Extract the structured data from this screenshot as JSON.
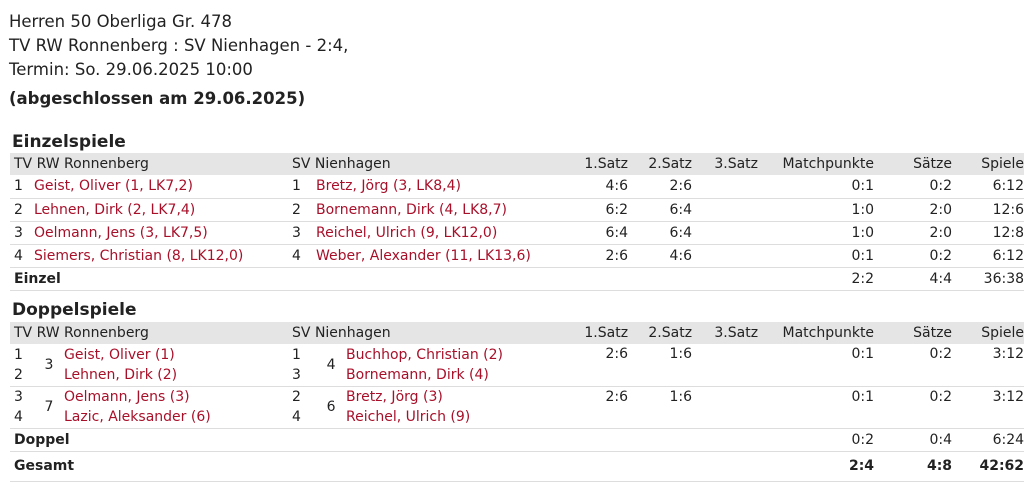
{
  "header": {
    "league": "Herren 50 Oberliga Gr. 478",
    "match": "TV RW Ronnenberg : SV Nienhagen - 2:4,",
    "termin": "Termin: So. 29.06.2025 10:00",
    "status": "(abgeschlossen am 29.06.2025)"
  },
  "columns": {
    "home": "TV RW Ronnenberg",
    "away": "SV Nienhagen",
    "s1": "1.Satz",
    "s2": "2.Satz",
    "s3": "3.Satz",
    "mp": "Matchpunkte",
    "saetze": "Sätze",
    "spiele": "Spiele"
  },
  "einzel": {
    "title": "Einzelspiele",
    "rows": [
      {
        "hn": "1",
        "home": "Geist, Oliver (1, LK7,2)",
        "an": "1",
        "away": "Bretz, Jörg (3, LK8,4)",
        "s1": "4:6",
        "s2": "2:6",
        "s3": "",
        "mp": "0:1",
        "saetze": "0:2",
        "spiele": "6:12"
      },
      {
        "hn": "2",
        "home": "Lehnen, Dirk (2, LK7,4)",
        "an": "2",
        "away": "Bornemann, Dirk (4, LK8,7)",
        "s1": "6:2",
        "s2": "6:4",
        "s3": "",
        "mp": "1:0",
        "saetze": "2:0",
        "spiele": "12:6"
      },
      {
        "hn": "3",
        "home": "Oelmann, Jens (3, LK7,5)",
        "an": "3",
        "away": "Reichel, Ulrich (9, LK12,0)",
        "s1": "6:4",
        "s2": "6:4",
        "s3": "",
        "mp": "1:0",
        "saetze": "2:0",
        "spiele": "12:8"
      },
      {
        "hn": "4",
        "home": "Siemers, Christian (8, LK12,0)",
        "an": "4",
        "away": "Weber, Alexander (11, LK13,6)",
        "s1": "2:6",
        "s2": "4:6",
        "s3": "",
        "mp": "0:1",
        "saetze": "0:2",
        "spiele": "6:12"
      }
    ],
    "sum": {
      "label": "Einzel",
      "mp": "2:2",
      "saetze": "4:4",
      "spiele": "36:38"
    }
  },
  "doppel": {
    "title": "Doppelspiele",
    "rows": [
      {
        "hn1": "1",
        "hn2": "2",
        "hpair": "3",
        "home1": "Geist, Oliver (1)",
        "home2": "Lehnen, Dirk (2)",
        "an1": "1",
        "an2": "3",
        "apair": "4",
        "away1": "Buchhop, Christian (2)",
        "away2": "Bornemann, Dirk (4)",
        "s1": "2:6",
        "s2": "1:6",
        "s3": "",
        "mp": "0:1",
        "saetze": "0:2",
        "spiele": "3:12"
      },
      {
        "hn1": "3",
        "hn2": "4",
        "hpair": "7",
        "home1": "Oelmann, Jens (3)",
        "home2": "Lazic, Aleksander (6)",
        "an1": "2",
        "an2": "4",
        "apair": "6",
        "away1": "Bretz, Jörg (3)",
        "away2": "Reichel, Ulrich (9)",
        "s1": "2:6",
        "s2": "1:6",
        "s3": "",
        "mp": "0:1",
        "saetze": "0:2",
        "spiele": "3:12"
      }
    ],
    "sum": {
      "label": "Doppel",
      "mp": "0:2",
      "saetze": "0:4",
      "spiele": "6:24"
    }
  },
  "gesamt": {
    "label": "Gesamt",
    "mp": "2:4",
    "saetze": "4:8",
    "spiele": "42:62"
  }
}
